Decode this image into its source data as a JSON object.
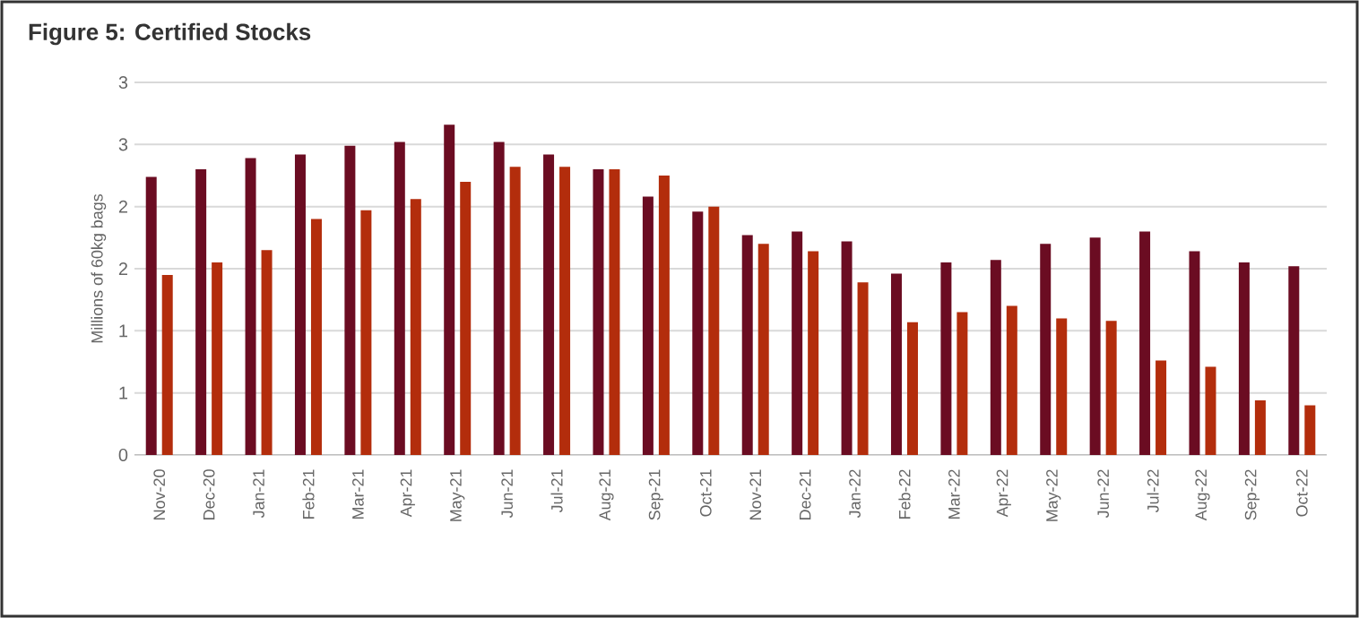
{
  "chart_data": {
    "type": "bar",
    "title": "Figure 5: Certified Stocks",
    "ylabel": "Millions of 60kg bags",
    "categories": [
      "Nov-20",
      "Dec-20",
      "Jan-21",
      "Feb-21",
      "Mar-21",
      "Apr-21",
      "May-21",
      "Jun-21",
      "Jul-21",
      "Aug-21",
      "Sep-21",
      "Oct-21",
      "Nov-21",
      "Dec-21",
      "Jan-22",
      "Feb-22",
      "Mar-22",
      "Apr-22",
      "May-22",
      "Jun-22",
      "Jul-22",
      "Aug-22",
      "Sep-22",
      "Oct-22"
    ],
    "series": [
      {
        "color": "#6b0c22",
        "values": [
          2.24,
          2.3,
          2.39,
          2.42,
          2.49,
          2.52,
          2.66,
          2.52,
          2.42,
          2.3,
          2.08,
          1.96,
          1.77,
          1.8,
          1.72,
          1.46,
          1.55,
          1.57,
          1.7,
          1.75,
          1.8,
          1.64,
          1.55,
          1.52
        ]
      },
      {
        "color": "#b32d0c",
        "values": [
          1.45,
          1.55,
          1.65,
          1.9,
          1.97,
          2.06,
          2.2,
          2.32,
          2.32,
          2.3,
          2.25,
          2.0,
          1.7,
          1.64,
          1.39,
          1.07,
          1.15,
          1.2,
          1.1,
          1.08,
          0.76,
          0.71,
          0.44,
          0.4
        ]
      }
    ],
    "ylim": [
      0,
      3
    ],
    "yticks": [
      0,
      {
        "value": 0.5,
        "label": "1"
      },
      1,
      {
        "value": 1.5,
        "label": "2"
      },
      2,
      {
        "value": 2.5,
        "label": "3"
      },
      3
    ],
    "grid": "y"
  }
}
